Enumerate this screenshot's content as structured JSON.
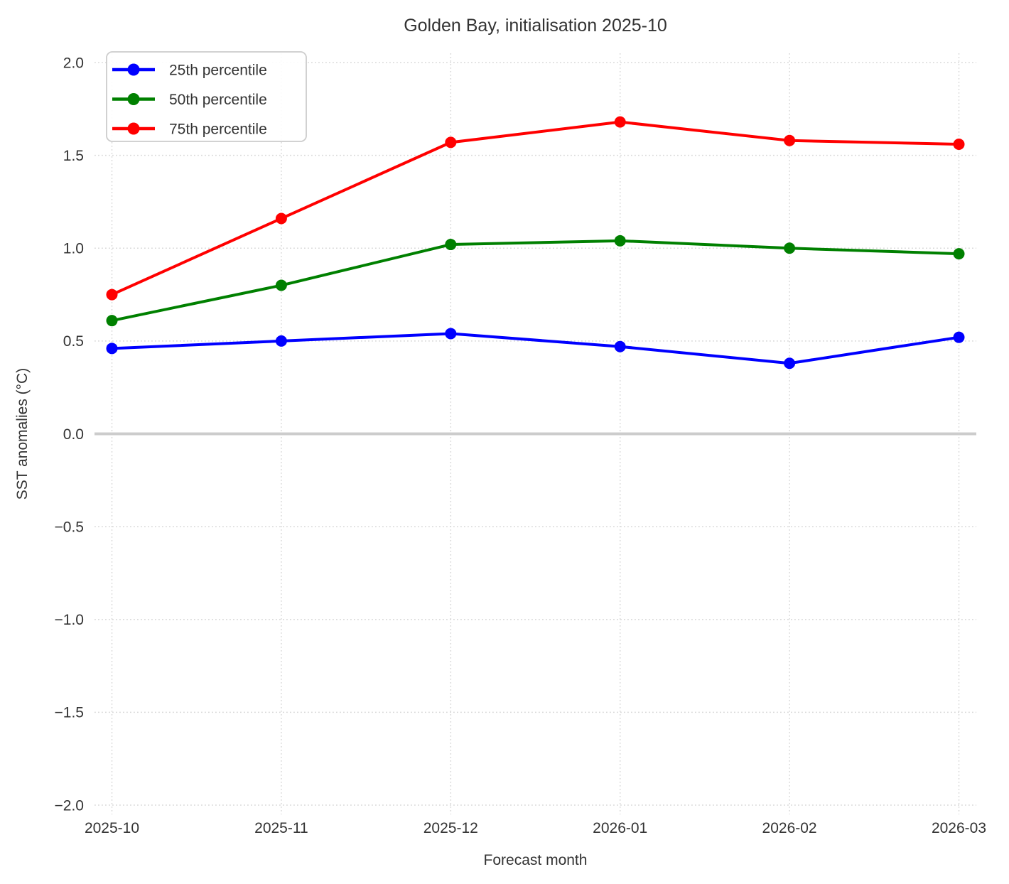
{
  "chart_data": {
    "type": "line",
    "title": "Golden Bay, initialisation 2025-10",
    "xlabel": "Forecast month",
    "ylabel": "SST anomalies (°C)",
    "categories": [
      "2025-10",
      "2025-11",
      "2025-12",
      "2026-01",
      "2026-02",
      "2026-03"
    ],
    "series": [
      {
        "name": "25th percentile",
        "color": "#0000ff",
        "values": [
          0.46,
          0.5,
          0.54,
          0.47,
          0.38,
          0.52
        ]
      },
      {
        "name": "50th percentile",
        "color": "#008000",
        "values": [
          0.61,
          0.8,
          1.02,
          1.04,
          1.0,
          0.97
        ]
      },
      {
        "name": "75th percentile",
        "color": "#ff0000",
        "values": [
          0.75,
          1.16,
          1.57,
          1.68,
          1.58,
          1.56
        ]
      }
    ],
    "yticks": [
      {
        "label": "2.0",
        "value": 2.0
      },
      {
        "label": "1.5",
        "value": 1.5
      },
      {
        "label": "1.0",
        "value": 1.0
      },
      {
        "label": "0.5",
        "value": 0.5
      },
      {
        "label": "0.0",
        "value": 0.0
      },
      {
        "label": "−0.5",
        "value": -0.5
      },
      {
        "label": "−1.0",
        "value": -1.0
      },
      {
        "label": "−1.5",
        "value": -1.5
      },
      {
        "label": "−2.0",
        "value": -2.0
      }
    ],
    "ylim": [
      -2.05,
      2.05
    ],
    "grid": "dotted",
    "grid_color": "#d8d8d8",
    "zero_line": {
      "value": 0.0,
      "color": "#cccccc"
    },
    "legend_position": "upper left",
    "text_color": "#333333",
    "background_color": "#ffffff"
  }
}
